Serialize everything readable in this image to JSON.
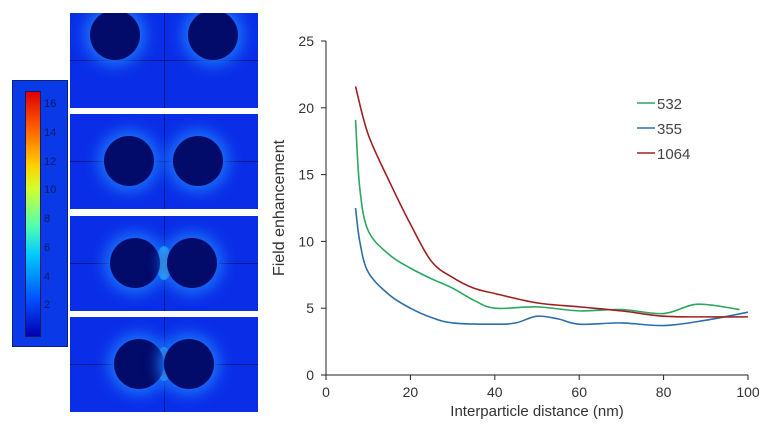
{
  "colorbar": {
    "ticks": [
      "2",
      "4",
      "6",
      "8",
      "10",
      "12",
      "14",
      "16"
    ],
    "min": 0,
    "max": 17
  },
  "chart_data": {
    "type": "line",
    "xlabel": "Interparticle distance (nm)",
    "ylabel": "Field enhancement",
    "xlim": [
      0,
      100
    ],
    "ylim": [
      0,
      25
    ],
    "xticks": [
      0,
      20,
      40,
      60,
      80,
      100
    ],
    "yticks": [
      0,
      5,
      10,
      15,
      20,
      25
    ],
    "legend_position": "top-right",
    "series": [
      {
        "name": "532",
        "color": "#2aa860",
        "x": [
          7,
          8,
          10,
          15,
          20,
          25,
          30,
          35,
          40,
          50,
          60,
          70,
          80,
          88,
          98
        ],
        "y": [
          19.1,
          14,
          10.8,
          9,
          8,
          7.2,
          6.5,
          5.6,
          5.0,
          5.1,
          4.8,
          4.9,
          4.6,
          5.3,
          4.9
        ]
      },
      {
        "name": "355",
        "color": "#2e6ea8",
        "x": [
          7,
          8,
          10,
          15,
          20,
          25,
          30,
          40,
          45,
          50,
          55,
          60,
          70,
          80,
          90,
          100
        ],
        "y": [
          12.5,
          10,
          7.7,
          6,
          5,
          4.3,
          3.9,
          3.8,
          3.9,
          4.4,
          4.2,
          3.8,
          3.9,
          3.7,
          4.1,
          4.7
        ]
      },
      {
        "name": "1064",
        "color": "#a02020",
        "x": [
          7,
          10,
          15,
          20,
          25,
          30,
          35,
          40,
          50,
          60,
          70,
          80,
          90,
          100
        ],
        "y": [
          21.6,
          18,
          14.5,
          11.3,
          8.5,
          7.3,
          6.5,
          6.1,
          5.4,
          5.1,
          4.8,
          4.4,
          4.35,
          4.35
        ]
      }
    ]
  }
}
